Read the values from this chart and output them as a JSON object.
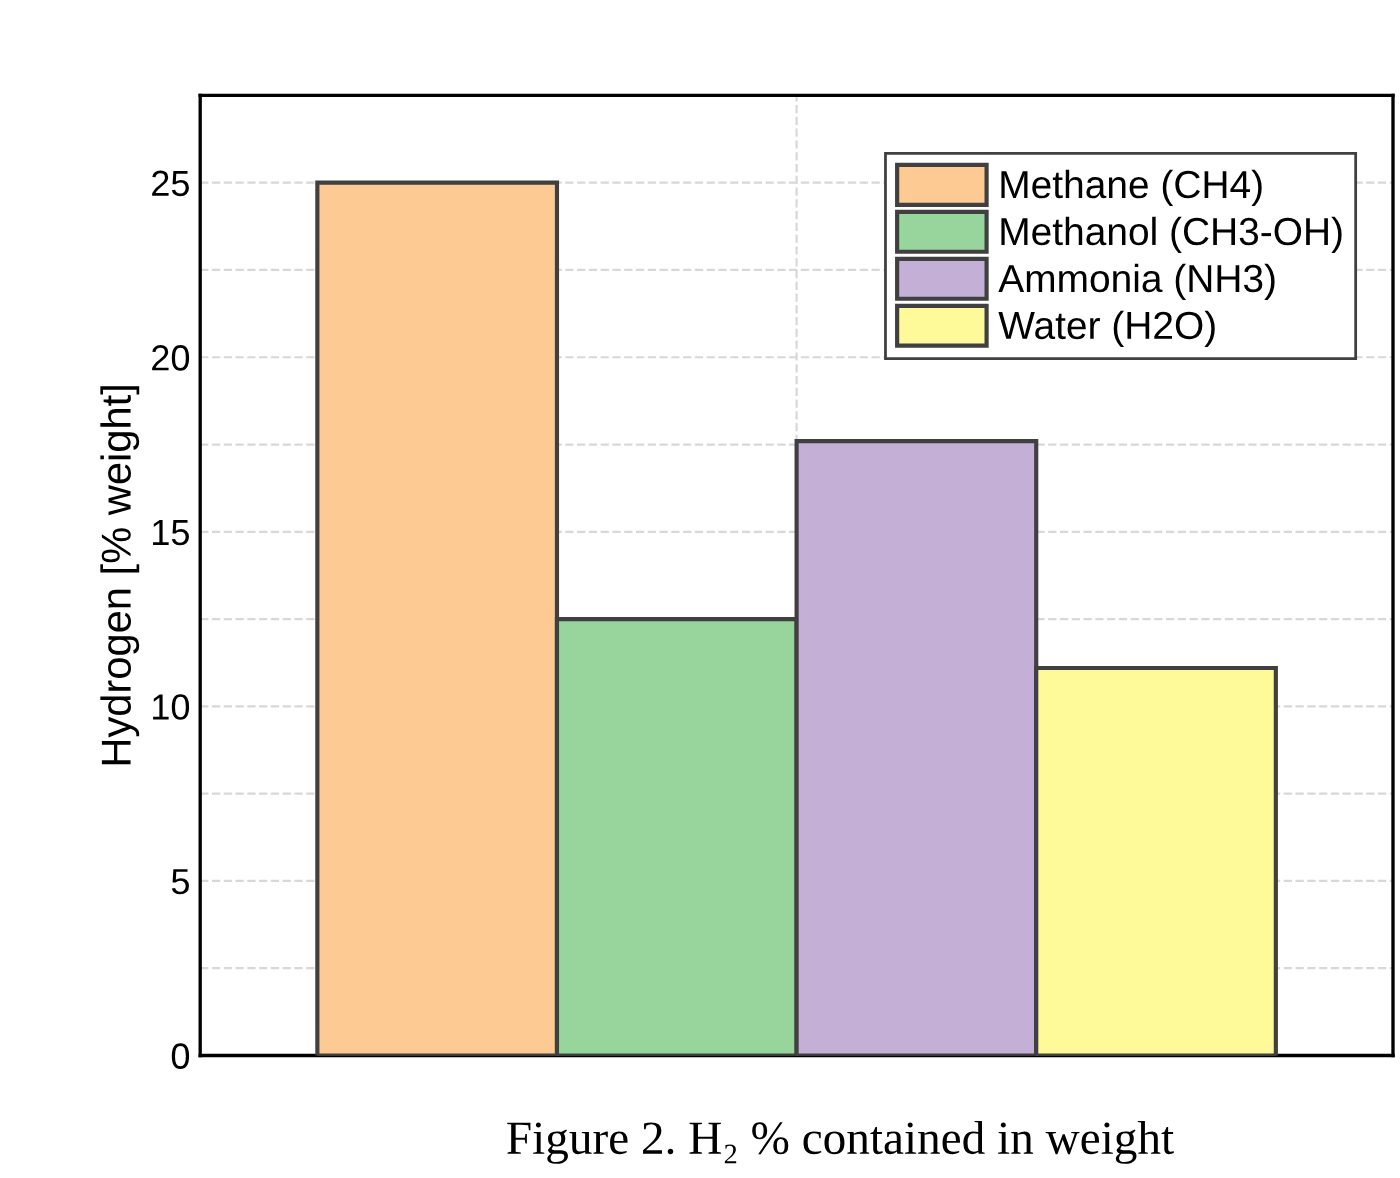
{
  "chart_data": {
    "type": "bar",
    "ylabel": "Hydrogen [% weight]",
    "categories": [
      null
    ],
    "series": [
      {
        "name": "Methane (CH4)",
        "color": "#fdca93",
        "values": [
          25
        ]
      },
      {
        "name": "Methanol (CH3-OH)",
        "color": "#98d59c",
        "values": [
          12.5
        ]
      },
      {
        "name": "Ammonia (NH3)",
        "color": "#c4b0d6",
        "values": [
          17.6
        ]
      },
      {
        "name": "Water (H2O)",
        "color": "#fefa9a",
        "values": [
          11.1
        ]
      }
    ],
    "ylim": [
      0,
      27.5
    ],
    "yticks": [
      0,
      {
        "value": 2.5,
        "label": null
      },
      5,
      {
        "value": 7.5,
        "label": null
      },
      10,
      {
        "value": 12.5,
        "label": null
      },
      15,
      {
        "value": 17.5,
        "label": null
      },
      20,
      {
        "value": 22.5,
        "label": null
      },
      25
    ],
    "grid": true,
    "legend": "top right",
    "annotations": [
      "Figure 2. H₂ % contained in weight"
    ]
  }
}
